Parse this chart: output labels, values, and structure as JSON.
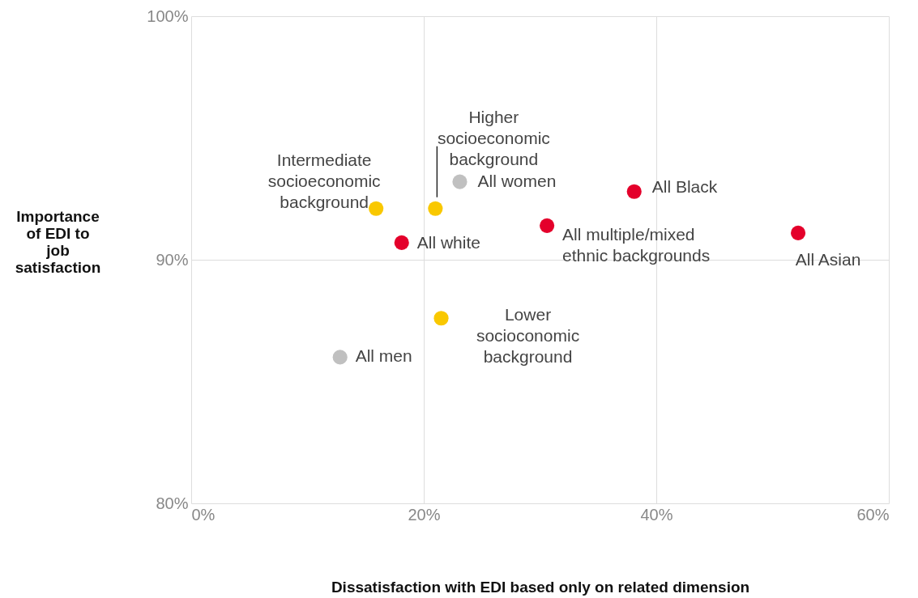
{
  "chart_data": {
    "type": "scatter",
    "xlabel": "Dissatisfaction with EDI based only on related dimension",
    "ylabel": "Importance of EDI to job satisfaction",
    "xlim": [
      0,
      60
    ],
    "ylim": [
      80,
      100
    ],
    "xticks": [
      {
        "value": 0,
        "label": "0%"
      },
      {
        "value": 20,
        "label": "20%"
      },
      {
        "value": 40,
        "label": "40%"
      },
      {
        "value": 60,
        "label": "60%"
      }
    ],
    "yticks": [
      {
        "value": 80,
        "label": "80%"
      },
      {
        "value": 90,
        "label": "90%"
      },
      {
        "value": 100,
        "label": "100%"
      }
    ],
    "grid": true,
    "legend": false,
    "marker": "circle",
    "series": [
      {
        "name": "Intermediate socioeconomic background",
        "color": "#f9c800",
        "x": [
          15.9
        ],
        "values": [
          92.1
        ]
      },
      {
        "name": "Higher socioeconomic background",
        "color": "#f9c800",
        "x": [
          21.0
        ],
        "values": [
          92.1
        ]
      },
      {
        "name": "Lower socioconomic background",
        "color": "#f9c800",
        "x": [
          21.5
        ],
        "values": [
          87.6
        ]
      },
      {
        "name": "All women",
        "color": "#c0c0c0",
        "x": [
          23.1
        ],
        "values": [
          93.2
        ]
      },
      {
        "name": "All men",
        "color": "#c0c0c0",
        "x": [
          12.8
        ],
        "values": [
          86.0
        ]
      },
      {
        "name": "All white",
        "color": "#e4002b",
        "x": [
          18.1
        ],
        "values": [
          90.7
        ]
      },
      {
        "name": "All multiple/mixed ethnic backgrounds",
        "color": "#e4002b",
        "x": [
          30.6
        ],
        "values": [
          91.4
        ]
      },
      {
        "name": "All Black",
        "color": "#e4002b",
        "x": [
          38.1
        ],
        "values": [
          92.8
        ]
      },
      {
        "name": "All Asian",
        "color": "#e4002b",
        "x": [
          52.2
        ],
        "values": [
          91.1
        ]
      }
    ]
  }
}
